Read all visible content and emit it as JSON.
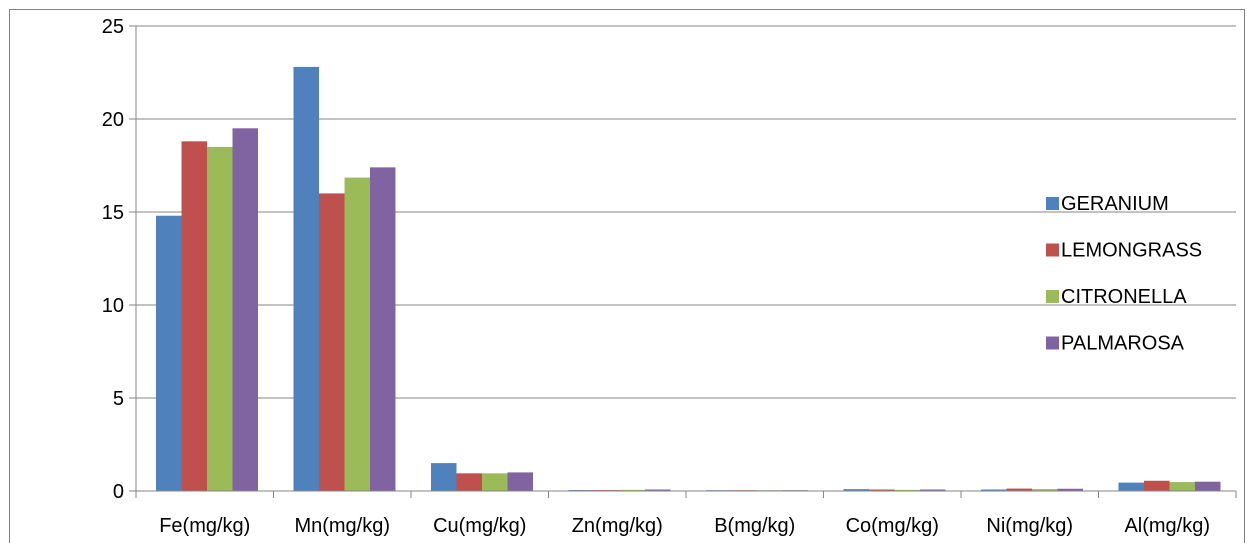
{
  "chart_data": {
    "type": "bar",
    "title": "",
    "xlabel": "",
    "ylabel": "",
    "ylim": [
      0,
      25
    ],
    "yticks": [
      0,
      5,
      10,
      15,
      20,
      25
    ],
    "grid": true,
    "legend_position": "right",
    "categories": [
      "Fe(mg/kg)",
      "Mn(mg/kg)",
      "Cu(mg/kg)",
      "Zn(mg/kg)",
      "B(mg/kg)",
      "Co(mg/kg)",
      "Ni(mg/kg)",
      "Al(mg/kg)"
    ],
    "series": [
      {
        "name": "GERANIUM",
        "color": "#4F81BD",
        "values": [
          14.8,
          22.8,
          1.5,
          0.05,
          0.02,
          0.1,
          0.08,
          0.45
        ]
      },
      {
        "name": "LEMONGRASS",
        "color": "#C0504D",
        "values": [
          18.8,
          16.0,
          0.95,
          0.05,
          0.04,
          0.08,
          0.13,
          0.55
        ]
      },
      {
        "name": "CITRONELLA",
        "color": "#9BBB59",
        "values": [
          18.5,
          16.85,
          0.95,
          0.06,
          0.02,
          0.06,
          0.1,
          0.48
        ]
      },
      {
        "name": "PALMAROSA",
        "color": "#8064A2",
        "values": [
          19.5,
          17.4,
          1.0,
          0.08,
          0.02,
          0.08,
          0.12,
          0.5
        ]
      }
    ]
  }
}
